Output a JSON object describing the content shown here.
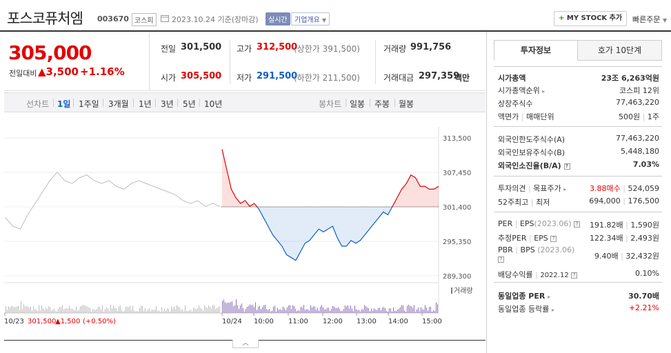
{
  "header": {
    "name": "포스코퓨처엠",
    "code": "003670",
    "market": "코스피",
    "date": "2023.10.24 기준(장마감)",
    "realtime": "실시간",
    "company_info": "기업개요",
    "mystock_plus": "+",
    "mystock_label": "MY STOCK 추가",
    "quick_order": "빠른주문"
  },
  "summary": {
    "price": "305,000",
    "change_label": "전일대비",
    "change_arrow": "▲",
    "change": "3,500",
    "change_pct": "+1.16%",
    "prev_label": "전일",
    "prev": "301,500",
    "high_label": "고가",
    "high": "312,500",
    "upper_limit": "(상한가 391,500)",
    "volume_label": "거래량",
    "volume": "991,756",
    "open_label": "시가",
    "open": "305,500",
    "low_label": "저가",
    "low": "291,500",
    "lower_limit": "(하한가 211,500)",
    "amount_label": "거래대금",
    "amount": "297,359",
    "amount_unit": "백만"
  },
  "tabs": {
    "line_label": "선차트",
    "periods": [
      "1일",
      "1주일",
      "3개월",
      "1년",
      "3년",
      "5년",
      "10년"
    ],
    "candle_label": "봉차트",
    "candles": [
      "일봉",
      "주봉",
      "월봉"
    ]
  },
  "chart_data": {
    "type": "line",
    "y_ticks": [
      "313,500",
      "307,450",
      "301,400",
      "295,350",
      "289,300"
    ],
    "y_range": [
      289300,
      313500
    ],
    "baseline": 301400,
    "x_ticks": [
      "10/23",
      "10/24",
      "10:00",
      "11:00",
      "12:00",
      "13:00",
      "14:00",
      "15:00"
    ],
    "volume_label": "거래량",
    "prev_day": {
      "date": "10/23",
      "close": "301,500",
      "change": "▲1,500",
      "change_pct": "(+0.50%)",
      "y": [
        299500,
        298000,
        297500,
        300000,
        302000,
        304000,
        306000,
        307500,
        306000,
        305500,
        306500,
        307000,
        306000,
        305500,
        306000,
        305000,
        304500,
        305500,
        306000,
        305500,
        305000,
        304500,
        304000,
        303500,
        302500,
        302000,
        302500,
        301500,
        302000,
        301500
      ]
    },
    "today": {
      "date": "10/24",
      "y": [
        311500,
        308000,
        304500,
        303000,
        302000,
        302500,
        301500,
        302000,
        301000,
        299500,
        298000,
        296500,
        295500,
        294500,
        293000,
        292500,
        292000,
        293500,
        295000,
        295500,
        296500,
        297500,
        297000,
        297500,
        298000,
        296000,
        294500,
        294500,
        295500,
        295000,
        295500,
        296500,
        297500,
        298500,
        299500,
        300500,
        300000,
        301500,
        303000,
        304500,
        305500,
        307000,
        306500,
        305000,
        305000,
        304500,
        304500,
        305000
      ]
    }
  },
  "invest": {
    "tab_invest": "투자정보",
    "tab_orderbook": "호가 10단계",
    "market_cap_label": "시가총액",
    "market_cap": "23조 6,263억원",
    "cap_rank_label": "시가총액순위",
    "cap_rank": "코스피 12위",
    "shares_label": "상장주식수",
    "shares": "77,463,220",
    "face_label": "액면가",
    "unit_label": "매매단위",
    "face": "500원",
    "unit": "1주",
    "foreign_limit_label": "외국인한도주식수(A)",
    "foreign_limit": "77,463,220",
    "foreign_hold_label": "외국인보유주식수(B)",
    "foreign_hold": "5,448,180",
    "foreign_ratio_label": "외국인소진율(B/A)",
    "foreign_ratio": "7.03%",
    "opinion_label": "투자의견",
    "target_label": "목표주가",
    "opinion": "3.88매수",
    "target": "524,059",
    "w52_high_label": "52주최고",
    "w52_low_label": "최저",
    "w52_high": "694,000",
    "w52_low": "176,500",
    "per_label": "PER",
    "eps_label": "EPS",
    "eps_date": "(2023.06)",
    "per": "191.82배",
    "eps": "1,590원",
    "est_per_label": "추정PER",
    "est_eps_label": "EPS",
    "est_per": "122.34배",
    "est_eps": "2,493원",
    "pbr_label": "PBR",
    "bps_label": "BPS",
    "bps_date": "(2023.06)",
    "pbr": "9.40배",
    "bps": "32,432원",
    "div_label": "배당수익률",
    "div_date": "2022.12",
    "div": "0.10%",
    "ind_per_label": "동일업종 PER",
    "ind_per": "30.70배",
    "ind_chg_label": "동일업종 등락률",
    "ind_chg": "+2.21%"
  },
  "colors": {
    "up": "#e40000",
    "down": "#0b5fc7",
    "prev_line": "#bdbdbd",
    "volume": "#8a6fb5"
  }
}
